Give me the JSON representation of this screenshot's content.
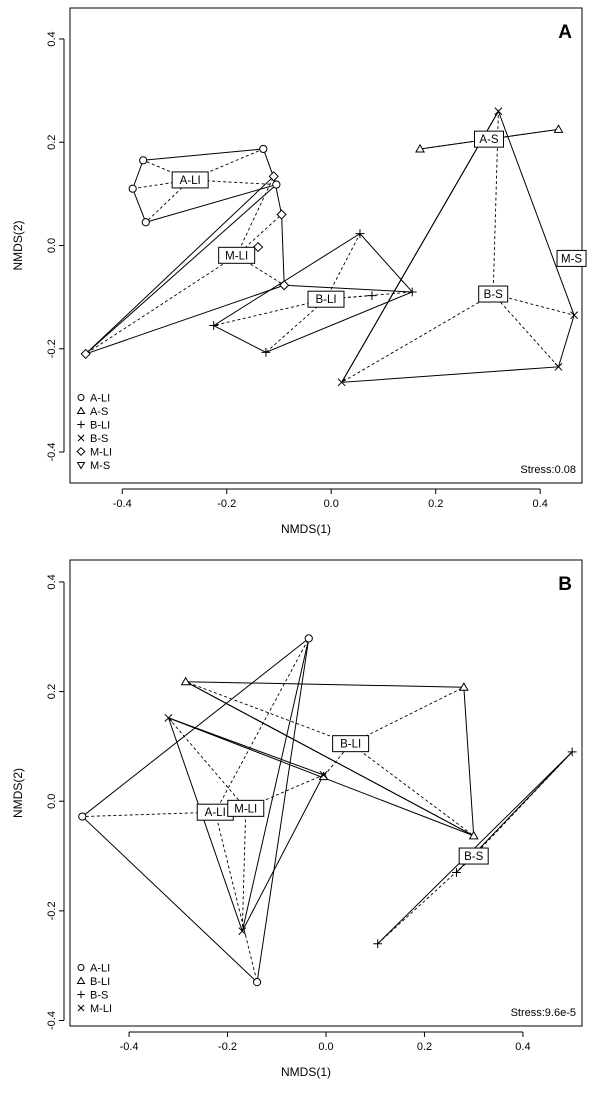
{
  "chart_data": [
    {
      "type": "scatter",
      "panel": "A",
      "xlabel": "NMDS(1)",
      "ylabel": "NMDS(2)",
      "xlim": [
        -0.5,
        0.48
      ],
      "ylim": [
        -0.46,
        0.46
      ],
      "xticks": [
        -0.4,
        -0.2,
        0.0,
        0.2,
        0.4
      ],
      "xtick_labels": [
        "-0.4",
        "-0.2",
        "0.0",
        "0.2",
        "0.4"
      ],
      "yticks": [
        -0.4,
        -0.2,
        0.0,
        0.2,
        0.4
      ],
      "ytick_labels": [
        "-0.4",
        "-0.2",
        "0.0",
        "0.2",
        "0.4"
      ],
      "stress_label": "Stress:0.08",
      "legend_position": "bottom-left",
      "legend": [
        {
          "marker": "circle",
          "label": "A-LI"
        },
        {
          "marker": "triangle-up",
          "label": "A-S"
        },
        {
          "marker": "plus",
          "label": "B-LI"
        },
        {
          "marker": "cross",
          "label": "B-S"
        },
        {
          "marker": "diamond",
          "label": "M-LI"
        },
        {
          "marker": "triangle-down",
          "label": "M-S"
        }
      ],
      "series": [
        {
          "name": "A-LI",
          "marker": "circle",
          "x": [
            -0.36,
            -0.38,
            -0.355,
            -0.13,
            -0.105
          ],
          "y": [
            0.165,
            0.11,
            0.045,
            0.187,
            0.118
          ],
          "hull": [
            [
              -0.36,
              0.165
            ],
            [
              -0.13,
              0.187
            ],
            [
              -0.105,
              0.118
            ],
            [
              -0.355,
              0.045
            ],
            [
              -0.38,
              0.11
            ]
          ],
          "centroid": [
            -0.27,
            0.127
          ]
        },
        {
          "name": "A-S",
          "marker": "triangle-up",
          "x": [
            0.17,
            0.435
          ],
          "y": [
            0.187,
            0.225
          ],
          "hull": [
            [
              0.17,
              0.187
            ],
            [
              0.435,
              0.225
            ]
          ],
          "centroid": [
            0.302,
            0.206
          ]
        },
        {
          "name": "B-LI",
          "marker": "plus",
          "x": [
            0.055,
            0.155,
            0.078,
            -0.225,
            -0.125
          ],
          "y": [
            0.023,
            -0.09,
            -0.097,
            -0.155,
            -0.207
          ],
          "hull": [
            [
              0.055,
              0.023
            ],
            [
              0.155,
              -0.09
            ],
            [
              -0.125,
              -0.207
            ],
            [
              -0.225,
              -0.155
            ]
          ],
          "centroid": [
            -0.01,
            -0.104
          ]
        },
        {
          "name": "B-S",
          "marker": "cross",
          "x": [
            0.32,
            0.465,
            0.435,
            0.02
          ],
          "y": [
            0.26,
            -0.135,
            -0.235,
            -0.265
          ],
          "hull": [
            [
              0.32,
              0.26
            ],
            [
              0.465,
              -0.135
            ],
            [
              0.435,
              -0.235
            ],
            [
              0.02,
              -0.265
            ]
          ],
          "centroid": [
            0.31,
            -0.094
          ]
        },
        {
          "name": "M-LI",
          "marker": "diamond",
          "x": [
            -0.11,
            -0.095,
            -0.09,
            -0.14,
            -0.47
          ],
          "y": [
            0.134,
            0.06,
            -0.077,
            -0.003,
            -0.21
          ],
          "hull": [
            [
              -0.11,
              0.134
            ],
            [
              -0.095,
              0.06
            ],
            [
              -0.09,
              -0.077
            ],
            [
              -0.47,
              -0.21
            ]
          ],
          "centroid": [
            -0.181,
            -0.019
          ]
        },
        {
          "name": "M-S",
          "marker": "triangle-down",
          "x": [],
          "y": [],
          "hull": [],
          "centroid": [
            0.46,
            -0.025
          ]
        }
      ],
      "extra_lines": [
        [
          [
            -0.105,
            0.118
          ],
          [
            -0.47,
            -0.21
          ]
        ],
        [
          [
            -0.09,
            -0.077
          ],
          [
            0.155,
            -0.09
          ]
        ],
        [
          [
            0.32,
            0.26
          ],
          [
            0.02,
            -0.265
          ]
        ]
      ]
    },
    {
      "type": "scatter",
      "panel": "B",
      "xlabel": "NMDS(1)",
      "ylabel": "NMDS(2)",
      "xlim": [
        -0.52,
        0.52
      ],
      "ylim": [
        -0.41,
        0.44
      ],
      "xticks": [
        -0.4,
        -0.2,
        0.0,
        0.2,
        0.4
      ],
      "xtick_labels": [
        "-0.4",
        "-0.2",
        "0.0",
        "0.2",
        "0.4"
      ],
      "yticks": [
        -0.4,
        -0.2,
        0.0,
        0.2,
        0.4
      ],
      "ytick_labels": [
        "-0.4",
        "-0.2",
        "0.0",
        "0.2",
        "0.4"
      ],
      "stress_label": "Stress:9.6e-5",
      "legend_position": "bottom-left",
      "legend": [
        {
          "marker": "circle",
          "label": "A-LI"
        },
        {
          "marker": "triangle-up",
          "label": "B-LI"
        },
        {
          "marker": "plus",
          "label": "B-S"
        },
        {
          "marker": "cross",
          "label": "M-LI"
        }
      ],
      "series": [
        {
          "name": "A-LI",
          "marker": "circle",
          "x": [
            -0.035,
            -0.495,
            -0.14
          ],
          "y": [
            0.297,
            -0.028,
            -0.33
          ],
          "hull": [
            [
              -0.035,
              0.297
            ],
            [
              -0.495,
              -0.028
            ],
            [
              -0.14,
              -0.33
            ]
          ],
          "centroid": [
            -0.225,
            -0.02
          ]
        },
        {
          "name": "B-LI",
          "marker": "triangle-up",
          "x": [
            -0.285,
            0.28,
            0.3,
            -0.005
          ],
          "y": [
            0.218,
            0.208,
            -0.063,
            0.045
          ],
          "hull": [
            [
              -0.285,
              0.218
            ],
            [
              0.28,
              0.208
            ],
            [
              0.3,
              -0.063
            ]
          ],
          "centroid": [
            0.05,
            0.105
          ]
        },
        {
          "name": "B-S",
          "marker": "plus",
          "x": [
            0.5,
            0.265,
            0.105
          ],
          "y": [
            0.09,
            -0.13,
            -0.26
          ],
          "hull": [
            [
              0.5,
              0.09
            ],
            [
              0.105,
              -0.26
            ]
          ],
          "centroid": [
            0.3,
            -0.1
          ]
        },
        {
          "name": "M-LI",
          "marker": "cross",
          "x": [
            -0.32,
            -0.17,
            -0.005
          ],
          "y": [
            0.152,
            -0.237,
            0.048
          ],
          "hull": [
            [
              -0.32,
              0.152
            ],
            [
              -0.17,
              -0.237
            ],
            [
              -0.005,
              0.048
            ]
          ],
          "centroid": [
            -0.163,
            -0.013
          ]
        }
      ],
      "extra_lines": [
        [
          [
            -0.285,
            0.218
          ],
          [
            0.3,
            -0.063
          ]
        ],
        [
          [
            -0.32,
            0.152
          ],
          [
            0.3,
            -0.063
          ]
        ],
        [
          [
            0.5,
            0.09
          ],
          [
            0.265,
            -0.13
          ]
        ],
        [
          [
            -0.035,
            0.297
          ],
          [
            -0.17,
            -0.237
          ]
        ]
      ]
    }
  ]
}
